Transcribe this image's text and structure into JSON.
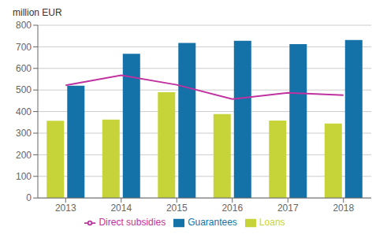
{
  "chart_data": {
    "type": "bar",
    "ylabel": "million EUR",
    "categories": [
      "2013",
      "2014",
      "2015",
      "2016",
      "2017",
      "2018"
    ],
    "series": [
      {
        "name": "Loans",
        "type": "bar",
        "color": "#c7d439",
        "values": [
          357,
          363,
          490,
          388,
          358,
          345
        ]
      },
      {
        "name": "Guarantees",
        "type": "bar",
        "color": "#1472a8",
        "values": [
          520,
          668,
          718,
          728,
          712,
          732
        ]
      },
      {
        "name": "Direct subsidies",
        "type": "line",
        "color": "#c032a0",
        "values": [
          522,
          568,
          524,
          458,
          487,
          476
        ]
      }
    ],
    "ylim": [
      0,
      800
    ],
    "yticks": [
      0,
      100,
      200,
      300,
      400,
      500,
      600,
      700,
      800
    ],
    "grid": true,
    "legend": "bottom"
  }
}
